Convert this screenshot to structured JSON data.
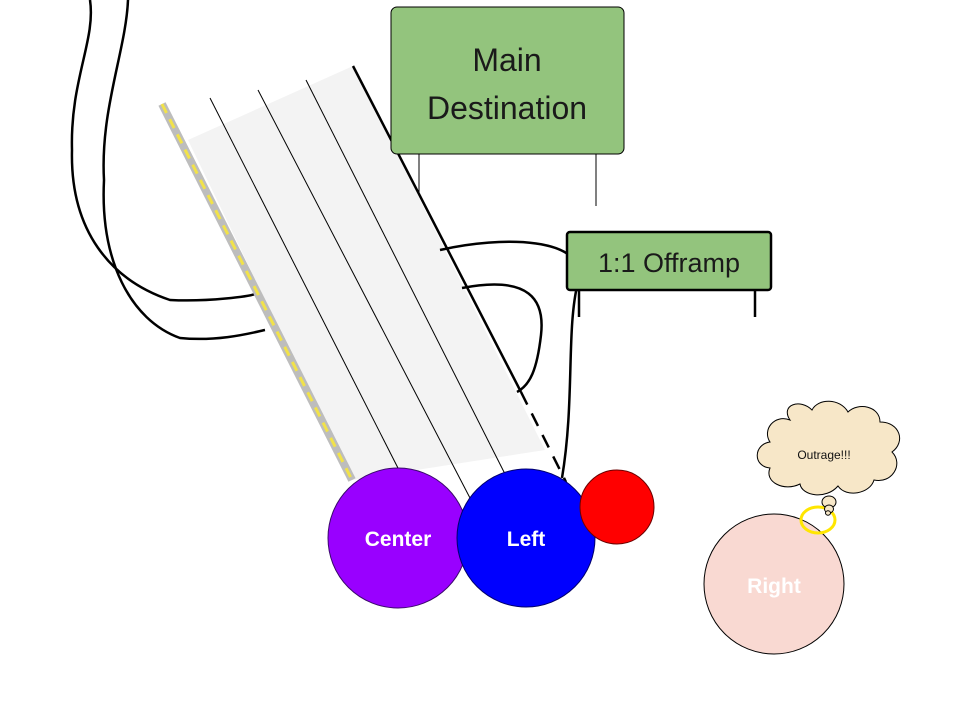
{
  "signs": {
    "main_line1": "Main",
    "main_line2": "Destination",
    "offramp": "1:1 Offramp"
  },
  "balls": {
    "center": "Center",
    "left": "Left",
    "right": "Right"
  },
  "thought": "Outrage!!!",
  "colors": {
    "sign_fill": "#93c47d",
    "road_fill": "#f3f3f3",
    "center_line": "#f1e24a",
    "center_ball": "#9900ff",
    "left_ball": "#0000ff",
    "red_ball": "#ff0000",
    "right_ball": "#f9d9d2",
    "thought_fill": "#f7e7c8",
    "highlight": "#ffe600"
  }
}
